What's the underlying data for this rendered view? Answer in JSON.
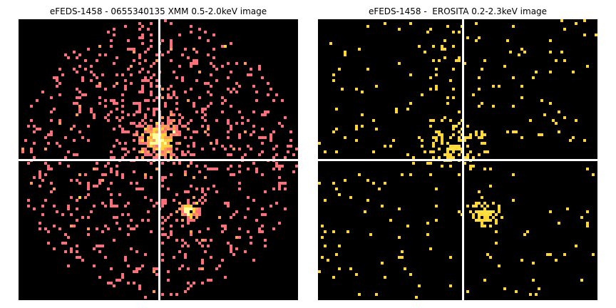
{
  "panels": [
    {
      "title": "eFEDS-1458 - 0655340135 XMM 0.5-2.0keV image",
      "instrument": "XMM",
      "colormap": {
        "background": "#000000",
        "low": "#ff6f7a",
        "mid": "#ff9a5a",
        "high": "#ffd23a",
        "peak": "#ffff9e"
      },
      "crosshair_color": "#ffffff"
    },
    {
      "title": "eFEDS-1458 -  EROSITA 0.2-2.3keV image",
      "instrument": "EROSITA",
      "colormap": {
        "background": "#000000",
        "low": "#ffd633",
        "mid": "#ffe040",
        "high": "#ffe84a",
        "peak": "#fff27a"
      },
      "crosshair_color": "#ffffff"
    }
  ]
}
